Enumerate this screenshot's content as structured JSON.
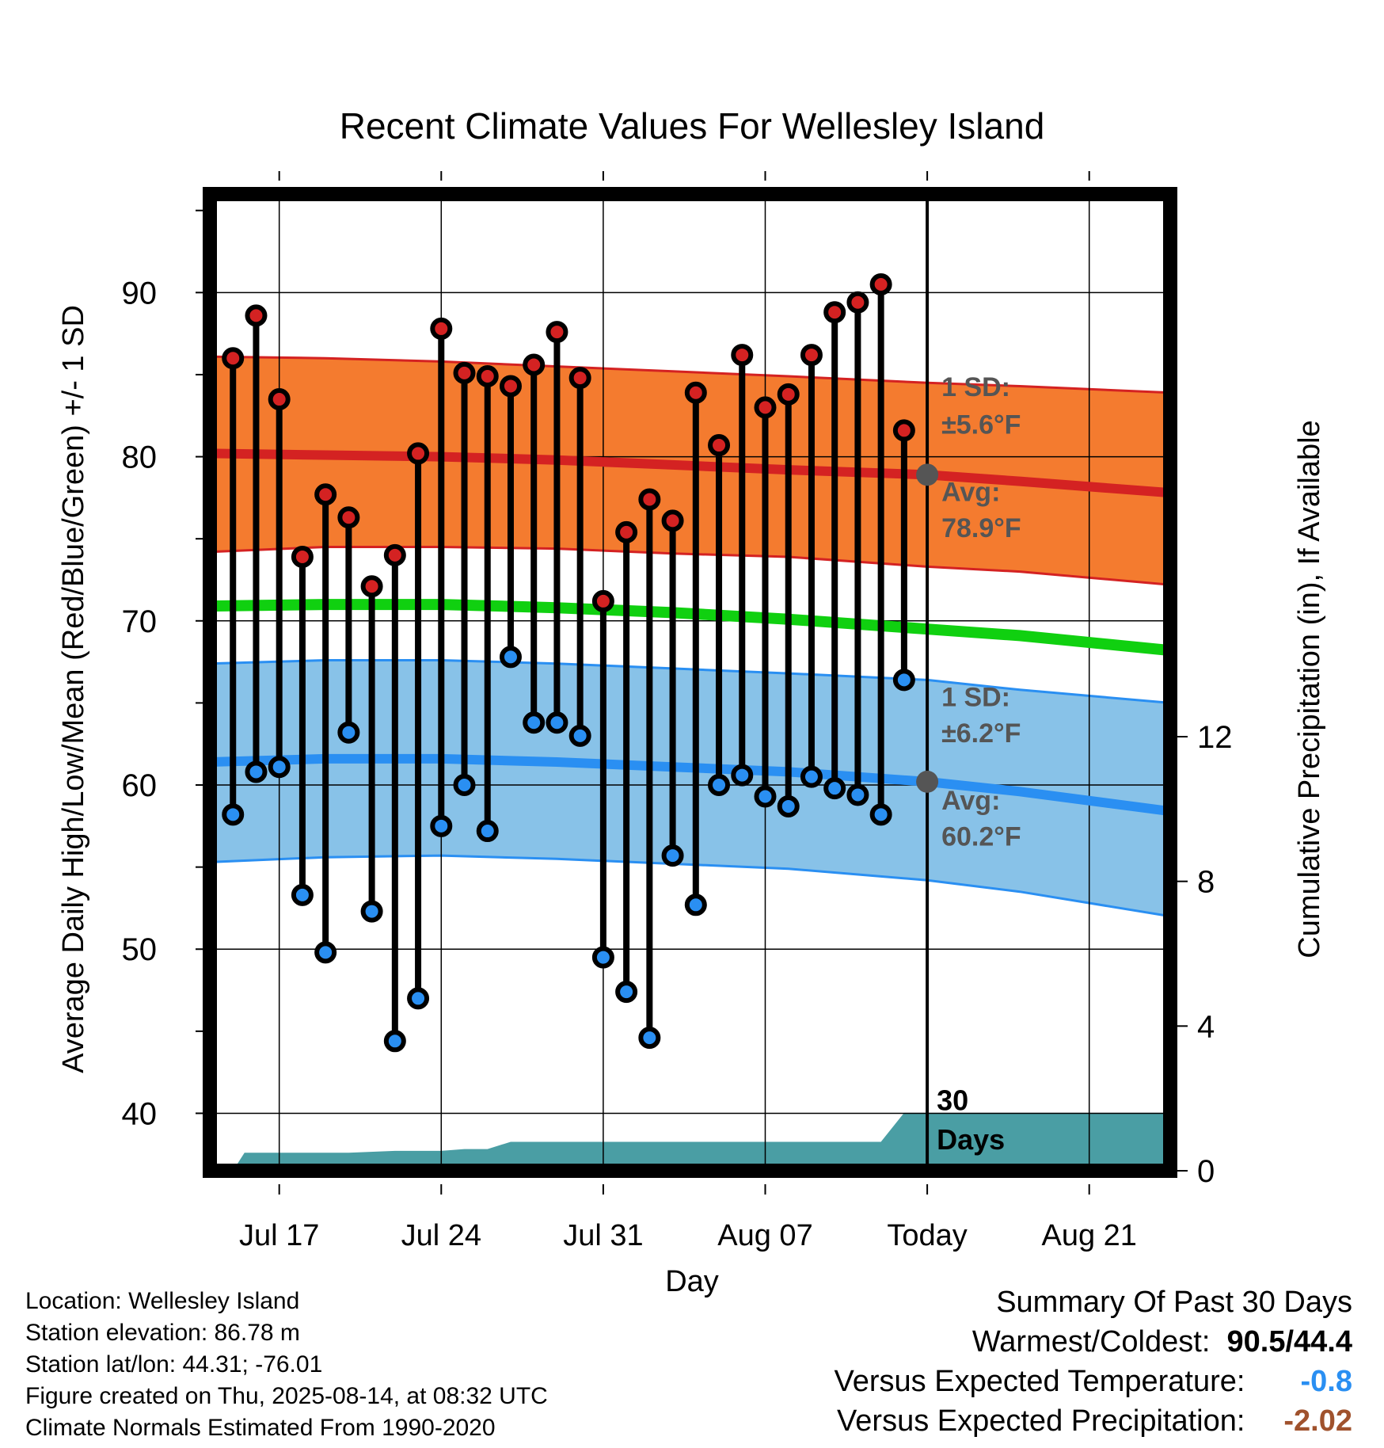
{
  "chart_data": {
    "type": "line",
    "title": "Recent Climate Values For Wellesley Island",
    "xlabel": "Day",
    "ylabel": "Average Daily High/Low/Mean (Red/Blue/Green) +/- 1 SD",
    "y2label": "Cumulative Precipitation (in), If Available",
    "xlim": [
      0,
      41.5
    ],
    "ylim": [
      36.5,
      96
    ],
    "y2lim": [
      0,
      27
    ],
    "x_ticks": [
      {
        "x": 3,
        "label": "Jul 17"
      },
      {
        "x": 10,
        "label": "Jul 24"
      },
      {
        "x": 17,
        "label": "Jul 31"
      },
      {
        "x": 24,
        "label": "Aug 07"
      },
      {
        "x": 31,
        "label": "Today"
      },
      {
        "x": 38,
        "label": "Aug 21"
      }
    ],
    "y_ticks": [
      40,
      50,
      60,
      70,
      80,
      90
    ],
    "y2_ticks": [
      0,
      4,
      8,
      12
    ],
    "today_x": 31,
    "grid": true,
    "colors": {
      "high_band": "#f47b2f",
      "high_line": "#d42222",
      "low_band": "#88c2e8",
      "low_line": "#2a8ff2",
      "mean_line": "#10d010",
      "precip_fill": "#4a9ea4",
      "high_dot": "#d42222",
      "low_dot": "#2a8ff2",
      "marker": "#555555",
      "neg_temp_text": "#2a8ff2",
      "neg_precip_text": "#a0522d"
    },
    "normals": {
      "x": [
        0,
        5,
        10,
        15,
        20,
        25,
        31,
        35,
        41.5
      ],
      "high_avg": [
        80.2,
        80.1,
        80.0,
        79.8,
        79.5,
        79.2,
        78.9,
        78.5,
        77.8
      ],
      "high_upper": [
        86.1,
        86.0,
        85.8,
        85.5,
        85.2,
        84.9,
        84.5,
        84.3,
        83.9
      ],
      "high_lower": [
        74.2,
        74.5,
        74.5,
        74.4,
        74.1,
        73.9,
        73.3,
        73.0,
        72.2
      ],
      "mean": [
        70.9,
        71.0,
        71.0,
        70.8,
        70.5,
        70.1,
        69.5,
        69.1,
        68.2
      ],
      "low_avg": [
        61.4,
        61.6,
        61.6,
        61.4,
        61.1,
        60.8,
        60.2,
        59.6,
        58.4
      ],
      "low_upper": [
        67.4,
        67.6,
        67.6,
        67.4,
        67.1,
        66.8,
        66.4,
        65.8,
        65.0
      ],
      "low_lower": [
        55.3,
        55.6,
        55.7,
        55.5,
        55.2,
        54.9,
        54.2,
        53.5,
        52.0
      ]
    },
    "observations": {
      "x": [
        1,
        2,
        3,
        4,
        5,
        6,
        7,
        8,
        9,
        10,
        11,
        12,
        13,
        14,
        15,
        16,
        17,
        18,
        19,
        20,
        21,
        22,
        23,
        24,
        25,
        26,
        27,
        28,
        29,
        30
      ],
      "high": [
        86.0,
        88.6,
        83.5,
        73.9,
        77.7,
        76.3,
        72.1,
        74.0,
        80.2,
        87.8,
        85.1,
        84.9,
        84.3,
        85.6,
        87.6,
        84.8,
        71.2,
        75.4,
        77.4,
        76.1,
        83.9,
        80.7,
        86.2,
        83.0,
        83.8,
        86.2,
        88.8,
        89.4,
        90.5,
        81.6
      ],
      "low": [
        58.2,
        60.8,
        61.1,
        53.3,
        49.8,
        63.2,
        52.3,
        44.4,
        47.0,
        57.5,
        60.0,
        57.2,
        67.8,
        63.8,
        63.8,
        63.0,
        49.5,
        47.4,
        44.6,
        55.7,
        52.7,
        60.0,
        60.6,
        59.3,
        58.7,
        60.5,
        59.8,
        59.4,
        58.2,
        66.4
      ]
    },
    "precipitation": {
      "x": [
        1,
        1.5,
        2.5,
        4,
        6,
        8,
        10,
        11,
        12,
        13,
        14,
        20,
        29,
        30,
        31,
        41.5
      ],
      "y": [
        0,
        0.5,
        0.5,
        0.5,
        0.5,
        0.55,
        0.55,
        0.6,
        0.6,
        0.8,
        0.8,
        0.8,
        0.8,
        1.6,
        1.6,
        1.6
      ]
    },
    "annotations": {
      "high_sd": "1 SD:",
      "high_sd_value": "±5.6°F",
      "high_avg_label": "Avg:",
      "high_avg_value": "78.9°F",
      "low_sd": "1 SD:",
      "low_sd_value": "±6.2°F",
      "low_avg_label": "Avg:",
      "low_avg_value": "60.2°F",
      "days_label_line1": "30",
      "days_label_line2": "Days"
    }
  },
  "info": {
    "location": "Location: Wellesley Island",
    "elevation": "Station elevation: 86.78 m",
    "latlon": "Station lat/lon: 44.31; -76.01",
    "created": "Figure created on Thu, 2025-08-14, at 08:32 UTC",
    "normals": "Climate Normals Estimated From 1990-2020"
  },
  "summary": {
    "heading": "Summary Of Past 30 Days",
    "warm_cold_label": "Warmest/Coldest:",
    "warm_cold_value": "90.5/44.4",
    "temp_label": "Versus Expected Temperature:",
    "temp_value": "-0.8",
    "precip_label": "Versus Expected Precipitation:",
    "precip_value": "-2.02"
  }
}
